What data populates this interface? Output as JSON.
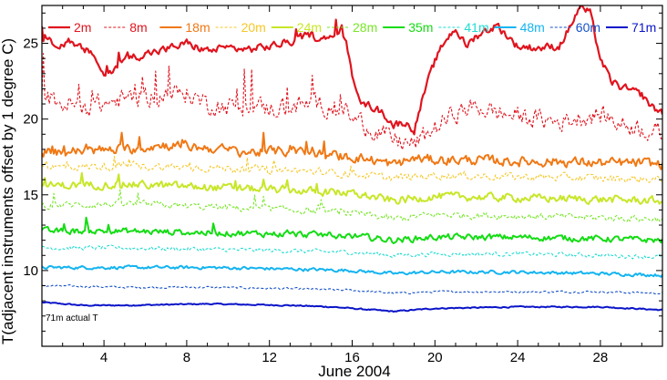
{
  "chart_data": {
    "type": "line",
    "title": "",
    "xlabel": "June 2004",
    "ylabel": "T(adjacent instruments offset by 1 degree C)",
    "xlim": [
      1,
      31
    ],
    "ylim": [
      5,
      27.5
    ],
    "xticks": [
      4,
      8,
      12,
      16,
      20,
      24,
      28
    ],
    "xtick_labels": [
      "4",
      "8",
      "12",
      "16",
      "20",
      "24",
      "28"
    ],
    "yticks": [
      10,
      15,
      20,
      25
    ],
    "ytick_labels": [
      "10",
      "15",
      "20",
      "25"
    ],
    "grid": false,
    "legend_placement": "top (inside plot, single row)",
    "annotation": "71m actual T",
    "series": [
      {
        "name": "2m",
        "color": "#e0141e",
        "dash": "solid",
        "width": 2.2,
        "noise": 0.45,
        "x": [
          1,
          2,
          3,
          3.5,
          4,
          5,
          6,
          7,
          8,
          9,
          10,
          11,
          12,
          13,
          14,
          14.5,
          15,
          15.5,
          16,
          16.5,
          17,
          17.5,
          18,
          18.5,
          19,
          19.5,
          20,
          20.5,
          21,
          21.5,
          22,
          23,
          24,
          25,
          26,
          26.5,
          27,
          27.5,
          28,
          28.5,
          29,
          30,
          30.5,
          31
        ],
        "y": [
          25.1,
          25,
          24.6,
          24.3,
          22.8,
          24,
          24.3,
          24.6,
          25,
          24.5,
          24.7,
          24.6,
          24.8,
          25.1,
          25.6,
          25.2,
          25.4,
          26,
          23,
          21,
          20.8,
          20.4,
          19.6,
          19.8,
          19.3,
          21.8,
          23.8,
          25.2,
          26,
          24.8,
          25.5,
          26.2,
          24.8,
          24.7,
          24.8,
          26,
          27.4,
          27,
          24,
          22.5,
          22.1,
          21.6,
          20.8,
          20.4
        ]
      },
      {
        "name": "8m",
        "color": "#e0141e",
        "dash": "3,2",
        "width": 1.1,
        "noise": 1.1,
        "x": [
          1,
          2,
          3,
          4,
          5,
          6,
          7,
          8,
          9,
          10,
          11,
          12,
          13,
          14,
          15,
          16,
          17,
          18,
          19,
          20,
          21,
          22,
          23,
          24,
          25,
          26,
          27,
          28,
          29,
          30,
          31
        ],
        "y": [
          21.5,
          21,
          20.8,
          21,
          21.3,
          21.5,
          21.6,
          21.7,
          21,
          20.8,
          20.9,
          20.7,
          20.8,
          21,
          20.8,
          20.2,
          19.3,
          18.6,
          18.3,
          19.4,
          20.4,
          20.8,
          20.4,
          20.2,
          20,
          19.8,
          20.1,
          20.3,
          19.7,
          19.4,
          19
        ]
      },
      {
        "name": "18m",
        "color": "#f07814",
        "dash": "solid",
        "width": 2.0,
        "noise": 0.55,
        "x": [
          1,
          3,
          5,
          7,
          9,
          11,
          13,
          15,
          16,
          17,
          18,
          19,
          20,
          22,
          24,
          26,
          28,
          30,
          31
        ],
        "y": [
          17.8,
          17.9,
          18,
          18.3,
          18.1,
          17.8,
          17.9,
          17.6,
          17.5,
          17.3,
          17,
          17.4,
          17.3,
          17.3,
          17.2,
          17.2,
          17.1,
          17.1,
          17
        ]
      },
      {
        "name": "20m",
        "color": "#f5c828",
        "dash": "3,2",
        "width": 1.1,
        "noise": 0.45,
        "x": [
          1,
          5,
          9,
          13,
          16,
          18,
          20,
          24,
          28,
          31
        ],
        "y": [
          16.8,
          16.9,
          16.8,
          16.6,
          16.4,
          16.1,
          16.3,
          16.2,
          16.1,
          16
        ]
      },
      {
        "name": "24m",
        "color": "#c8e628",
        "dash": "solid",
        "width": 2.0,
        "noise": 0.45,
        "x": [
          1,
          5,
          9,
          13,
          16,
          18,
          20,
          24,
          28,
          31
        ],
        "y": [
          15.6,
          15.7,
          15.5,
          15.3,
          15.1,
          14.6,
          14.9,
          14.8,
          14.7,
          14.6
        ]
      },
      {
        "name": "28m",
        "color": "#78e628",
        "dash": "3,2",
        "width": 1.1,
        "noise": 0.4,
        "x": [
          1,
          5,
          9,
          13,
          16,
          18,
          20,
          24,
          28,
          31
        ],
        "y": [
          14.3,
          14.4,
          14.2,
          14,
          13.8,
          13.4,
          13.7,
          13.6,
          13.5,
          13.4
        ]
      },
      {
        "name": "35m",
        "color": "#14dc14",
        "dash": "solid",
        "width": 2.0,
        "noise": 0.35,
        "x": [
          1,
          5,
          9,
          13,
          16,
          18,
          20,
          24,
          28,
          31
        ],
        "y": [
          12.6,
          12.6,
          12.5,
          12.4,
          12.3,
          12,
          12.2,
          12.2,
          12.1,
          12
        ]
      },
      {
        "name": "41m",
        "color": "#1edcd2",
        "dash": "3,2",
        "width": 1.1,
        "noise": 0.25,
        "x": [
          1,
          5,
          9,
          13,
          16,
          18,
          20,
          24,
          28,
          31
        ],
        "y": [
          11.5,
          11.5,
          11.4,
          11.3,
          11.2,
          11,
          11.1,
          11.1,
          11,
          10.9
        ]
      },
      {
        "name": "48m",
        "color": "#14b4f0",
        "dash": "solid",
        "width": 2.0,
        "noise": 0.18,
        "x": [
          1,
          5,
          9,
          13,
          16,
          18,
          20,
          24,
          28,
          31
        ],
        "y": [
          10.2,
          10.2,
          10.2,
          10.1,
          10,
          9.8,
          9.9,
          9.9,
          9.8,
          9.7
        ]
      },
      {
        "name": "60m",
        "color": "#1450c8",
        "dash": "3,2",
        "width": 1.1,
        "noise": 0.12,
        "x": [
          1,
          5,
          9,
          13,
          16,
          18,
          20,
          24,
          28,
          31
        ],
        "y": [
          9,
          8.9,
          8.9,
          8.8,
          8.7,
          8.5,
          8.6,
          8.6,
          8.6,
          8.5
        ]
      },
      {
        "name": "71m",
        "color": "#0a14c8",
        "dash": "solid",
        "width": 2.0,
        "noise": 0.07,
        "x": [
          1,
          3,
          5,
          9,
          13,
          15,
          16,
          18,
          19,
          20,
          24,
          28,
          31
        ],
        "y": [
          7.9,
          7.7,
          7.7,
          7.8,
          7.7,
          7.6,
          7.5,
          7.3,
          7.4,
          7.5,
          7.6,
          7.6,
          7.4
        ]
      }
    ]
  }
}
